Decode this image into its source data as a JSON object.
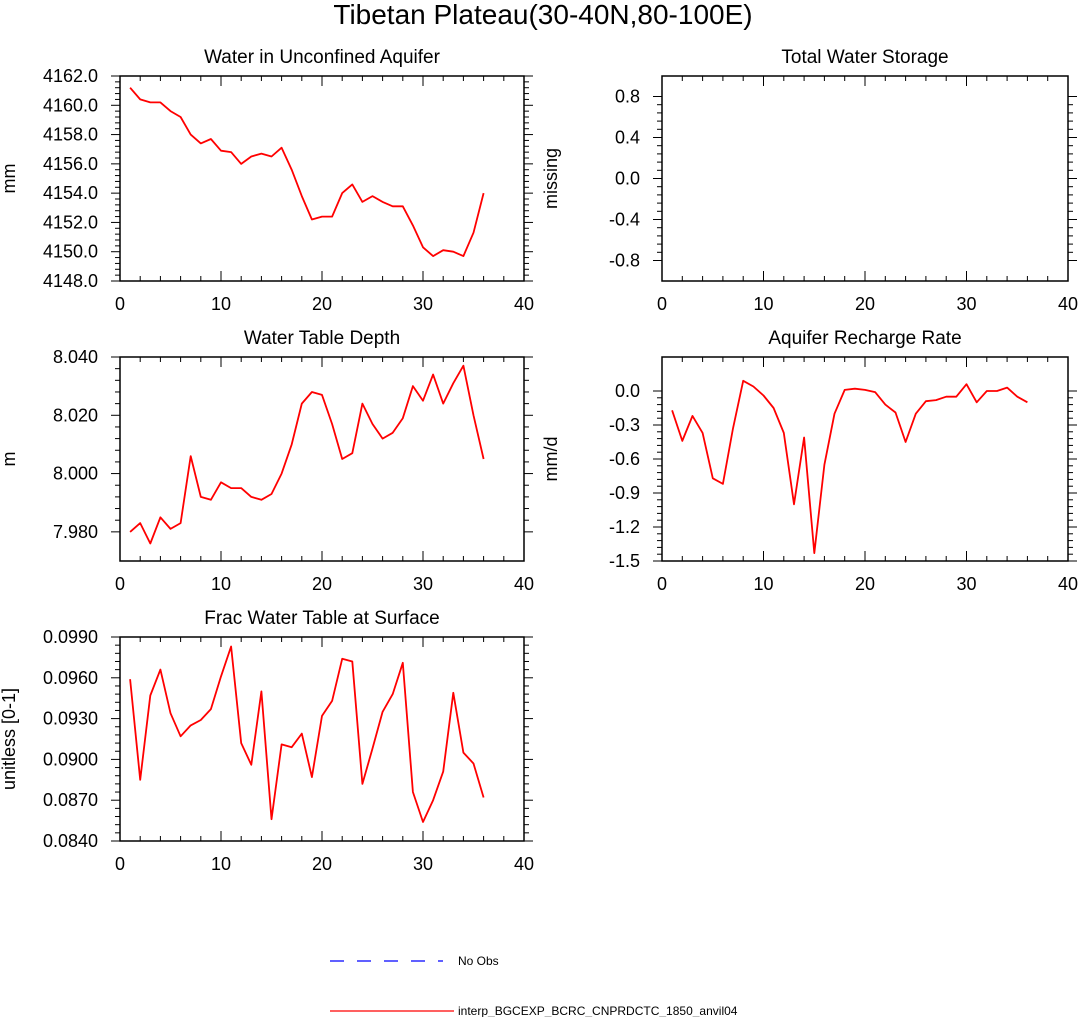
{
  "figure": {
    "title": "Tibetan Plateau(30-40N,80-100E)"
  },
  "colors": {
    "model_line": "#ff0000",
    "obs_line": "#0000ff",
    "axes": "#000000",
    "background": "#ffffff"
  },
  "legend": {
    "entries": [
      {
        "label": "No Obs",
        "style": "dashed",
        "color": "#0000ff"
      },
      {
        "label": "interp_BGCEXP_BCRC_CNPRDCTC_1850_anvil04",
        "style": "solid",
        "color": "#ff0000"
      }
    ]
  },
  "chart_data": [
    {
      "type": "line",
      "title": "Water in Unconfined Aquifer",
      "xlabel": "",
      "ylabel": "mm",
      "xlim": [
        0,
        40
      ],
      "ylim": [
        4148,
        4162
      ],
      "xticks": [
        0,
        10,
        20,
        30,
        40
      ],
      "xtick_labels": [
        "0",
        "10",
        "20",
        "30",
        "40"
      ],
      "yticks": [
        4148,
        4150,
        4152,
        4154,
        4156,
        4158,
        4160,
        4162
      ],
      "ytick_labels": [
        "4148.0",
        "4150.0",
        "4152.0",
        "4154.0",
        "4156.0",
        "4158.0",
        "4160.0",
        "4162.0"
      ],
      "series": [
        {
          "x": [
            1,
            2,
            3,
            4,
            5,
            6,
            7,
            8,
            9,
            10,
            11,
            12,
            13,
            14,
            15,
            16,
            17,
            18,
            19,
            20,
            21,
            22,
            23,
            24,
            25,
            26,
            27,
            28,
            29,
            30,
            31,
            32,
            33,
            34,
            35,
            36
          ],
          "y": [
            4161.2,
            4160.4,
            4160.2,
            4160.2,
            4159.6,
            4159.2,
            4158.0,
            4157.4,
            4157.7,
            4156.9,
            4156.8,
            4156.0,
            4156.5,
            4156.7,
            4156.5,
            4157.1,
            4155.6,
            4153.8,
            4152.2,
            4152.4,
            4152.4,
            4154.0,
            4154.6,
            4153.4,
            4153.8,
            4153.4,
            4153.1,
            4153.1,
            4151.8,
            4150.3,
            4149.7,
            4150.1,
            4150.0,
            4149.7,
            4151.3,
            4154.0
          ],
          "color": "#ff0000"
        }
      ]
    },
    {
      "type": "line",
      "title": "Total Water Storage",
      "xlabel": "",
      "ylabel": "missing",
      "xlim": [
        0,
        40
      ],
      "ylim": [
        -1,
        1
      ],
      "xticks": [
        0,
        10,
        20,
        30,
        40
      ],
      "xtick_labels": [
        "0",
        "10",
        "20",
        "30",
        "40"
      ],
      "yticks": [
        -0.8,
        -0.4,
        0,
        0.4,
        0.8
      ],
      "ytick_labels": [
        "-0.8",
        "-0.4",
        "0.0",
        "0.4",
        "0.8"
      ],
      "series": []
    },
    {
      "type": "line",
      "title": "Water Table Depth",
      "xlabel": "",
      "ylabel": "m",
      "xlim": [
        0,
        40
      ],
      "ylim": [
        7.97,
        8.04
      ],
      "xticks": [
        0,
        10,
        20,
        30,
        40
      ],
      "xtick_labels": [
        "0",
        "10",
        "20",
        "30",
        "40"
      ],
      "yticks": [
        7.98,
        8.0,
        8.02,
        8.04
      ],
      "ytick_labels": [
        "7.980",
        "8.000",
        "8.020",
        "8.040"
      ],
      "series": [
        {
          "x": [
            1,
            2,
            3,
            4,
            5,
            6,
            7,
            8,
            9,
            10,
            11,
            12,
            13,
            14,
            15,
            16,
            17,
            18,
            19,
            20,
            21,
            22,
            23,
            24,
            25,
            26,
            27,
            28,
            29,
            30,
            31,
            32,
            33,
            34,
            35,
            36
          ],
          "y": [
            7.98,
            7.983,
            7.976,
            7.985,
            7.981,
            7.983,
            8.006,
            7.992,
            7.991,
            7.997,
            7.995,
            7.995,
            7.992,
            7.991,
            7.993,
            8.0,
            8.01,
            8.024,
            8.028,
            8.027,
            8.017,
            8.005,
            8.007,
            8.024,
            8.017,
            8.012,
            8.014,
            8.019,
            8.03,
            8.025,
            8.034,
            8.024,
            8.031,
            8.037,
            8.02,
            8.005
          ],
          "color": "#ff0000"
        }
      ]
    },
    {
      "type": "line",
      "title": "Aquifer Recharge Rate",
      "xlabel": "",
      "ylabel": "mm/d",
      "xlim": [
        0,
        40
      ],
      "ylim": [
        -1.5,
        0.3
      ],
      "xticks": [
        0,
        10,
        20,
        30,
        40
      ],
      "xtick_labels": [
        "0",
        "10",
        "20",
        "30",
        "40"
      ],
      "yticks": [
        -1.5,
        -1.2,
        -0.9,
        -0.6,
        -0.3,
        0.0
      ],
      "ytick_labels": [
        "-1.5",
        "-1.2",
        "-0.9",
        "-0.6",
        "-0.3",
        "0.0"
      ],
      "series": [
        {
          "x": [
            1,
            2,
            3,
            4,
            5,
            6,
            7,
            8,
            9,
            10,
            11,
            12,
            13,
            14,
            15,
            16,
            17,
            18,
            19,
            20,
            21,
            22,
            23,
            24,
            25,
            26,
            27,
            28,
            29,
            30,
            31,
            32,
            33,
            34,
            35,
            36
          ],
          "y": [
            -0.17,
            -0.44,
            -0.22,
            -0.37,
            -0.77,
            -0.82,
            -0.33,
            0.09,
            0.04,
            -0.04,
            -0.15,
            -0.37,
            -1.0,
            -0.41,
            -1.43,
            -0.65,
            -0.2,
            0.01,
            0.02,
            0.01,
            -0.01,
            -0.12,
            -0.19,
            -0.45,
            -0.2,
            -0.09,
            -0.08,
            -0.05,
            -0.05,
            0.06,
            -0.1,
            0.0,
            0.0,
            0.03,
            -0.05,
            -0.1
          ],
          "color": "#ff0000"
        }
      ]
    },
    {
      "type": "line",
      "title": "Frac Water Table at Surface",
      "xlabel": "",
      "ylabel": "unitless [0-1]",
      "xlim": [
        0,
        40
      ],
      "ylim": [
        0.084,
        0.099
      ],
      "xticks": [
        0,
        10,
        20,
        30,
        40
      ],
      "xtick_labels": [
        "0",
        "10",
        "20",
        "30",
        "40"
      ],
      "yticks": [
        0.084,
        0.087,
        0.09,
        0.093,
        0.096,
        0.099
      ],
      "ytick_labels": [
        "0.0840",
        "0.0870",
        "0.0900",
        "0.0930",
        "0.0960",
        "0.0990"
      ],
      "series": [
        {
          "x": [
            1,
            2,
            3,
            4,
            5,
            6,
            7,
            8,
            9,
            10,
            11,
            12,
            13,
            14,
            15,
            16,
            17,
            18,
            19,
            20,
            21,
            22,
            23,
            24,
            25,
            26,
            27,
            28,
            29,
            30,
            31,
            32,
            33,
            34,
            35,
            36
          ],
          "y": [
            0.0959,
            0.0885,
            0.0947,
            0.0966,
            0.0934,
            0.0917,
            0.0925,
            0.0929,
            0.0937,
            0.0961,
            0.0983,
            0.0912,
            0.0896,
            0.095,
            0.0856,
            0.0911,
            0.0909,
            0.0919,
            0.0887,
            0.0932,
            0.0943,
            0.0974,
            0.0972,
            0.0882,
            0.0908,
            0.0935,
            0.0948,
            0.0971,
            0.0876,
            0.0854,
            0.087,
            0.0891,
            0.0949,
            0.0905,
            0.0897,
            0.0872
          ],
          "color": "#ff0000"
        }
      ]
    }
  ]
}
